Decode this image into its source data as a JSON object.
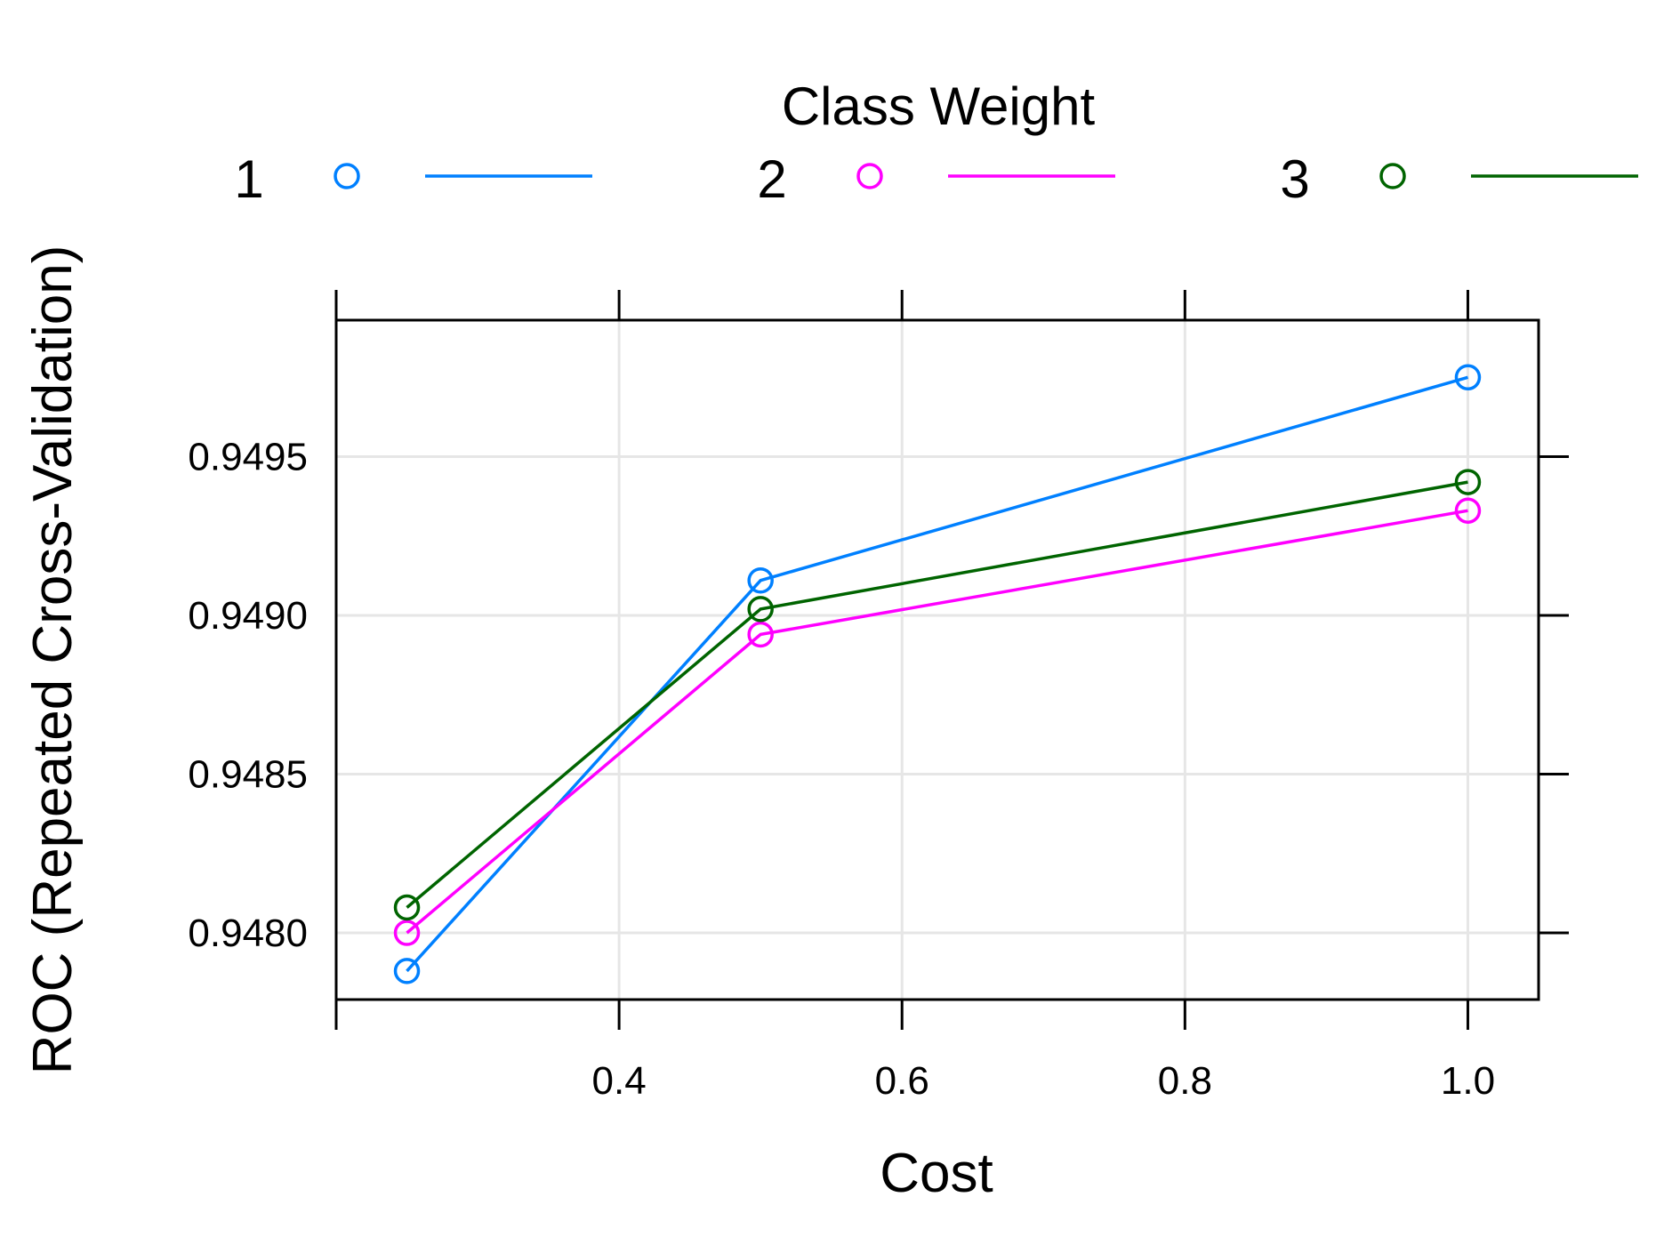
{
  "chart_data": {
    "type": "line",
    "xlabel": "Cost",
    "ylabel": "ROC (Repeated Cross-Validation)",
    "legend_title": "Class Weight",
    "legend_position": "top",
    "grid": true,
    "xlim": [
      0.2,
      1.05
    ],
    "ylim": [
      0.94779,
      0.94993
    ],
    "x_ticks": [
      {
        "value": 0.4,
        "label": "0.4"
      },
      {
        "value": 0.6,
        "label": "0.6"
      },
      {
        "value": 0.8,
        "label": "0.8"
      },
      {
        "value": 1.0,
        "label": "1.0"
      }
    ],
    "x_top_ticks": [
      0.2,
      0.4,
      0.6,
      0.8,
      1.0
    ],
    "x_bottom_ticks": [
      0.2,
      0.4,
      0.6,
      0.8,
      1.0
    ],
    "y_ticks": [
      {
        "value": 0.948,
        "label": "0.9480"
      },
      {
        "value": 0.9485,
        "label": "0.9485"
      },
      {
        "value": 0.949,
        "label": "0.9490"
      },
      {
        "value": 0.9495,
        "label": "0.9495"
      }
    ],
    "x": [
      0.25,
      0.5,
      1.0
    ],
    "series": [
      {
        "name": "1",
        "color": "#0080ff",
        "values": [
          0.94788,
          0.94911,
          0.94975
        ]
      },
      {
        "name": "2",
        "color": "#ff00ff",
        "values": [
          0.948,
          0.94894,
          0.94933
        ]
      },
      {
        "name": "3",
        "color": "#006400",
        "values": [
          0.94808,
          0.94902,
          0.94942
        ]
      }
    ]
  }
}
